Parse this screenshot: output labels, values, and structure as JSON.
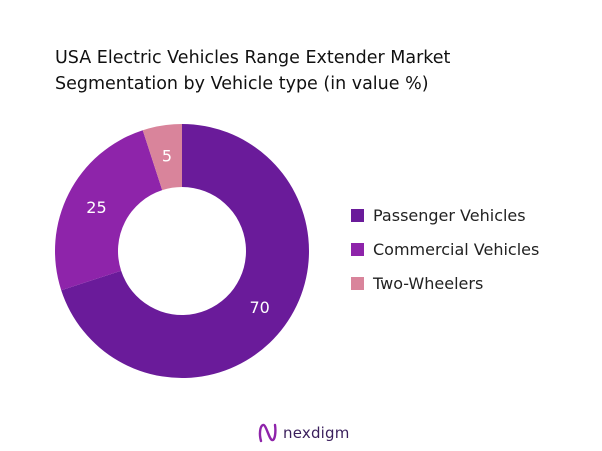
{
  "chart_data": {
    "type": "pie",
    "style": "donut",
    "title_lines": [
      "USA Electric Vehicles Range Extender Market",
      "Segmentation by Vehicle type (in value %)"
    ],
    "categories": [
      "Passenger Vehicles",
      "Commercial Vehicles",
      "Two-Wheelers"
    ],
    "values": [
      70,
      25,
      5
    ],
    "colors": [
      "#6a1b9a",
      "#8e24aa",
      "#d9849b"
    ],
    "label_color": "#ffffff",
    "start_angle_deg": 0,
    "direction": "clockwise",
    "legend_position": "right"
  },
  "brand": {
    "name": "nexdigm",
    "icon": "nexdigm-logo-icon"
  }
}
